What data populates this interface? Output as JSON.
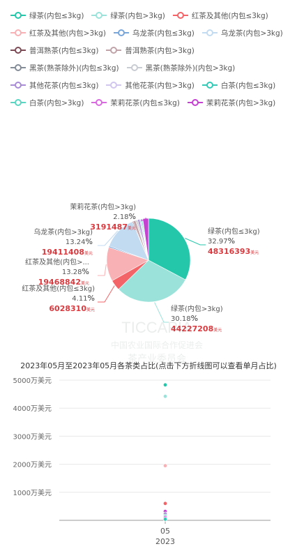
{
  "chart_data": [
    {
      "type": "pie",
      "legend_placement": "top",
      "slices": [
        {
          "name": "绿茶(内包≤3kg)",
          "color": "#25C7AB",
          "percent": "32.97",
          "value": "48316393"
        },
        {
          "name": "绿茶(内包>3kg)",
          "color": "#9BE3DA",
          "percent": "30.18",
          "value": "44227208"
        },
        {
          "name": "红茶及其他(内包≤3kg)",
          "color": "#F26468",
          "percent": "4.11",
          "value": "6028310"
        },
        {
          "name": "红茶及其他(内包>3kg)",
          "color": "#F8B1B4",
          "percent": "13.28",
          "value": "19468842"
        },
        {
          "name": "乌龙茶(内包≤3kg)",
          "color": "#78A6DB",
          "percent": "0.5",
          "value": ""
        },
        {
          "name": "乌龙茶(内包>3kg)",
          "color": "#C3DBF1",
          "percent": "13.24",
          "value": "19411408"
        },
        {
          "name": "普洱熟茶(内包≤3kg)",
          "color": "#7B4A55",
          "percent": "0.3",
          "value": ""
        },
        {
          "name": "普洱熟茶(内包>3kg)",
          "color": "#BFA3A8",
          "percent": "1.0",
          "value": ""
        },
        {
          "name": "黑茶(熟茶除外)(内包≤3kg)",
          "color": "#848C98",
          "percent": "0.3",
          "value": ""
        },
        {
          "name": "黑茶(熟茶除外)(内包>3kg)",
          "color": "#C9CBD3",
          "percent": "0.6",
          "value": ""
        },
        {
          "name": "其他花茶(内包≤3kg)",
          "color": "#A88BD6",
          "percent": "0.7",
          "value": ""
        },
        {
          "name": "其他花茶(内包>3kg)",
          "color": "#D1C6EE",
          "percent": "0.4",
          "value": ""
        },
        {
          "name": "白茶(内包≤3kg)",
          "color": "#33C9B6",
          "percent": "0.3",
          "value": ""
        },
        {
          "name": "白茶(内包>3kg)",
          "color": "#5CD6C2",
          "percent": "0.4",
          "value": ""
        },
        {
          "name": "茉莉花茶(内包≤3kg)",
          "color": "#D96AE0",
          "percent": "0.2",
          "value": ""
        },
        {
          "name": "茉莉花茶(内包>3kg)",
          "color": "#C541D1",
          "percent": "2.18",
          "value": "3191487"
        }
      ],
      "labels": [
        {
          "slice": "绿茶(内包≤3kg)",
          "name": "绿茶(内包≤3kg)",
          "percent": "32.97",
          "value": "48316393"
        },
        {
          "slice": "绿茶(内包>3kg)",
          "name": "绿茶(内包>3kg)",
          "percent": "30.18",
          "value": "44227208"
        },
        {
          "slice": "红茶及其他(内包≤3kg)",
          "name": "红茶及其他(内包≤3kg)",
          "percent": "4.11",
          "value": "6028310"
        },
        {
          "slice": "红茶及其他(内包>3kg)",
          "name": "红茶及其他(内包>...",
          "percent": "13.28",
          "value": "19468842"
        },
        {
          "slice": "乌龙茶(内包>3kg)",
          "name": "乌龙茶(内包>3kg)",
          "percent": "13.24",
          "value": "19411408"
        },
        {
          "slice": "茉莉花茶(内包>3kg)",
          "name": "茉莉花茶(内包>3kg)",
          "percent": "2.18",
          "value": "3191487"
        }
      ],
      "percent_sign": "%",
      "value_unit": "美元"
    },
    {
      "type": "scatter",
      "title": "2023年05月至2023年05月各茶类占比(点击下方折线图可以查看单月占比)",
      "categories": [
        {
          "month": "05",
          "year": "2023"
        }
      ],
      "y_ticks": [
        "5000万美元",
        "4000万美元",
        "3000万美元",
        "2000万美元",
        "1000万美元"
      ],
      "y_tick_values": [
        5000,
        4000,
        3000,
        2000,
        1000
      ],
      "ylim": [
        0,
        5000
      ],
      "grid": true,
      "points": [
        {
          "series": "绿茶(内包≤3kg)",
          "value": 4831.6
        },
        {
          "series": "绿茶(内包>3kg)",
          "value": 4422.7
        },
        {
          "series": "乌龙茶(内包>3kg)",
          "value": 1941.1
        },
        {
          "series": "红茶及其他(内包>3kg)",
          "value": 1946.9
        },
        {
          "series": "红茶及其他(内包≤3kg)",
          "value": 602.8
        },
        {
          "series": "茉莉花茶(内包>3kg)",
          "value": 319.1
        },
        {
          "series": "其他花茶(内包≤3kg)",
          "value": 230
        },
        {
          "series": "白茶(内包>3kg)",
          "value": 150
        },
        {
          "series": "茉莉花茶(内包≤3kg)",
          "value": 100
        },
        {
          "series": "白茶(内包≤3kg)",
          "value": 40
        }
      ]
    }
  ],
  "watermark": {
    "brand": "TICCAPIA",
    "org_line1": "中国农业国际合作促进会",
    "org_line2": "茶产业委员会"
  }
}
